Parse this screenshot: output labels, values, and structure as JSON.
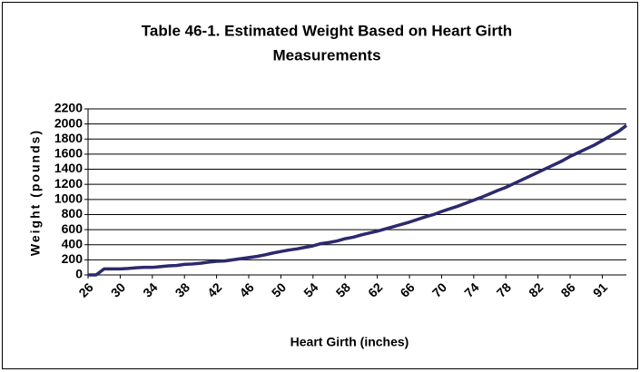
{
  "chart_data": {
    "type": "line",
    "title": "Table 46-1. Estimated Weight Based on Heart Girth",
    "subtitle": "Measurements",
    "x_label": "Heart Girth (inches)",
    "y_label": "Weight (pounds)",
    "categories": [
      "26",
      null,
      null,
      null,
      "30",
      null,
      null,
      null,
      "34",
      null,
      null,
      null,
      "38",
      null,
      null,
      null,
      "42",
      null,
      null,
      null,
      "46",
      null,
      null,
      null,
      "50",
      null,
      null,
      null,
      "54",
      null,
      null,
      null,
      "58",
      null,
      null,
      null,
      "62",
      null,
      null,
      null,
      "66",
      null,
      null,
      null,
      "70",
      null,
      null,
      null,
      "74",
      null,
      null,
      null,
      "78",
      null,
      null,
      null,
      "82",
      null,
      null,
      null,
      "86",
      null,
      null,
      null,
      "91",
      null,
      null,
      null
    ],
    "series": [
      {
        "name": "Weight",
        "color": "#2b2a6e",
        "values": [
          0,
          0,
          80,
          80,
          80,
          85,
          95,
          100,
          100,
          110,
          120,
          125,
          140,
          145,
          155,
          170,
          180,
          185,
          200,
          215,
          230,
          245,
          265,
          290,
          310,
          330,
          345,
          365,
          385,
          415,
          430,
          450,
          480,
          500,
          530,
          555,
          580,
          610,
          640,
          670,
          700,
          735,
          770,
          800,
          840,
          875,
          910,
          950,
          990,
          1030,
          1075,
          1120,
          1160,
          1210,
          1260,
          1310,
          1360,
          1410,
          1460,
          1510,
          1570,
          1620,
          1670,
          1720,
          1780,
          1840,
          1900,
          1980
        ]
      }
    ],
    "ylim": [
      0,
      2200
    ],
    "yticks": [
      0,
      200,
      400,
      600,
      800,
      1000,
      1200,
      1400,
      1600,
      1800,
      2000,
      2200
    ],
    "grid": true
  }
}
